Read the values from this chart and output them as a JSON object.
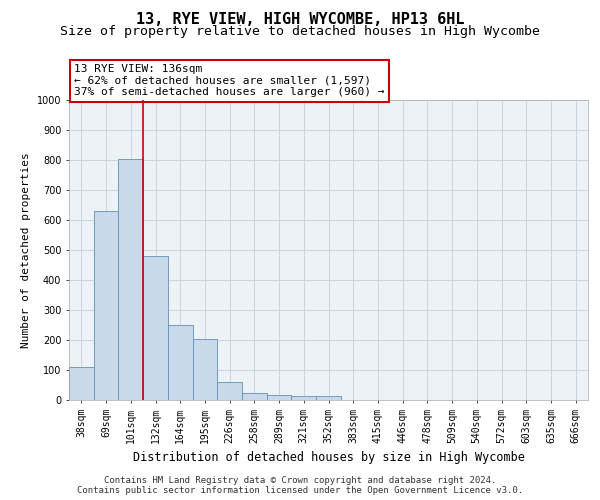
{
  "title": "13, RYE VIEW, HIGH WYCOMBE, HP13 6HL",
  "subtitle": "Size of property relative to detached houses in High Wycombe",
  "xlabel": "Distribution of detached houses by size in High Wycombe",
  "ylabel": "Number of detached properties",
  "bin_labels": [
    "38sqm",
    "69sqm",
    "101sqm",
    "132sqm",
    "164sqm",
    "195sqm",
    "226sqm",
    "258sqm",
    "289sqm",
    "321sqm",
    "352sqm",
    "383sqm",
    "415sqm",
    "446sqm",
    "478sqm",
    "509sqm",
    "540sqm",
    "572sqm",
    "603sqm",
    "635sqm",
    "666sqm"
  ],
  "bar_values": [
    110,
    630,
    805,
    480,
    250,
    205,
    60,
    25,
    18,
    12,
    12,
    0,
    0,
    0,
    0,
    0,
    0,
    0,
    0,
    0,
    0
  ],
  "bar_color": "#c9d9ea",
  "bar_edgecolor": "#6090bb",
  "grid_color": "#c5d0dc",
  "background_color": "#edf2f7",
  "vline_x": 2.5,
  "vline_color": "#cc0000",
  "annotation_text": "13 RYE VIEW: 136sqm\n← 62% of detached houses are smaller (1,597)\n37% of semi-detached houses are larger (960) →",
  "annotation_box_color": "#ffffff",
  "annotation_box_edgecolor": "#cc0000",
  "ylim": [
    0,
    1000
  ],
  "yticks": [
    0,
    100,
    200,
    300,
    400,
    500,
    600,
    700,
    800,
    900,
    1000
  ],
  "footer_line1": "Contains HM Land Registry data © Crown copyright and database right 2024.",
  "footer_line2": "Contains public sector information licensed under the Open Government Licence v3.0.",
  "title_fontsize": 11,
  "subtitle_fontsize": 9.5,
  "xlabel_fontsize": 8.5,
  "ylabel_fontsize": 8,
  "tick_fontsize": 7,
  "annotation_fontsize": 8,
  "footer_fontsize": 6.5
}
